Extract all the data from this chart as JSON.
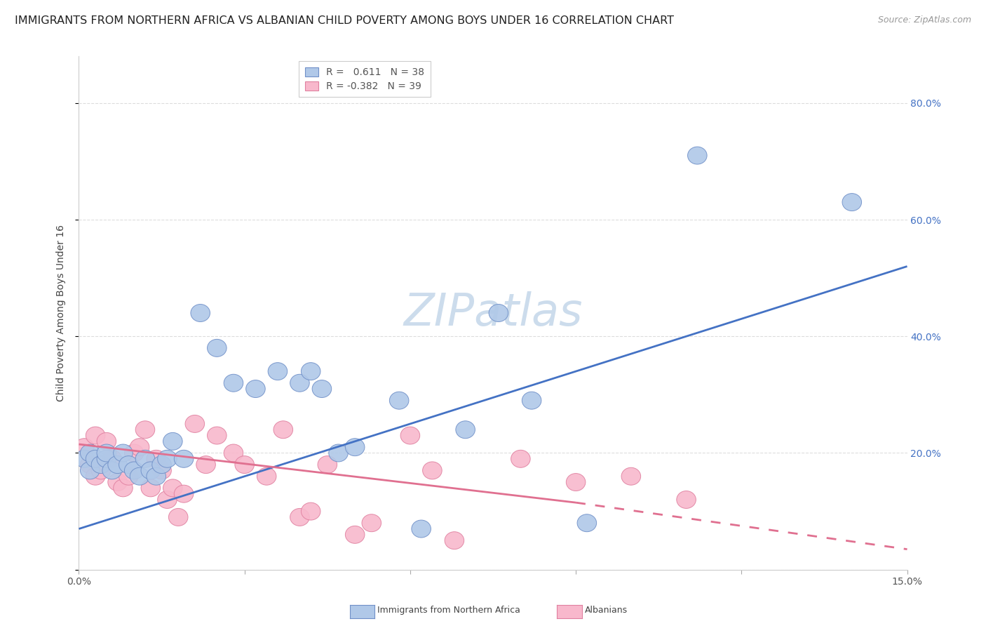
{
  "title": "IMMIGRANTS FROM NORTHERN AFRICA VS ALBANIAN CHILD POVERTY AMONG BOYS UNDER 16 CORRELATION CHART",
  "source": "Source: ZipAtlas.com",
  "ylabel": "Child Poverty Among Boys Under 16",
  "xlim": [
    0.0,
    0.15
  ],
  "ylim": [
    0.0,
    0.88
  ],
  "xticks": [
    0.0,
    0.03,
    0.06,
    0.09,
    0.12,
    0.15
  ],
  "xticklabels": [
    "0.0%",
    "",
    "",
    "",
    "",
    "15.0%"
  ],
  "yticks": [
    0.0,
    0.2,
    0.4,
    0.6,
    0.8
  ],
  "right_yticklabels": [
    "",
    "20.0%",
    "40.0%",
    "60.0%",
    "80.0%"
  ],
  "blue_R": "0.611",
  "blue_N": "38",
  "pink_R": "-0.382",
  "pink_N": "39",
  "blue_line_color": "#4472c4",
  "pink_line_color": "#e07090",
  "watermark": "ZIPatlas",
  "blue_scatter_x": [
    0.001,
    0.002,
    0.002,
    0.003,
    0.004,
    0.005,
    0.005,
    0.006,
    0.007,
    0.008,
    0.009,
    0.01,
    0.011,
    0.012,
    0.013,
    0.014,
    0.015,
    0.016,
    0.017,
    0.019,
    0.022,
    0.025,
    0.028,
    0.032,
    0.036,
    0.04,
    0.042,
    0.044,
    0.047,
    0.05,
    0.058,
    0.062,
    0.07,
    0.076,
    0.082,
    0.092,
    0.112,
    0.14
  ],
  "blue_scatter_y": [
    0.19,
    0.17,
    0.2,
    0.19,
    0.18,
    0.19,
    0.2,
    0.17,
    0.18,
    0.2,
    0.18,
    0.17,
    0.16,
    0.19,
    0.17,
    0.16,
    0.18,
    0.19,
    0.22,
    0.19,
    0.44,
    0.38,
    0.32,
    0.31,
    0.34,
    0.32,
    0.34,
    0.31,
    0.2,
    0.21,
    0.29,
    0.07,
    0.24,
    0.44,
    0.29,
    0.08,
    0.71,
    0.63
  ],
  "pink_scatter_x": [
    0.001,
    0.002,
    0.003,
    0.003,
    0.004,
    0.005,
    0.006,
    0.007,
    0.008,
    0.009,
    0.01,
    0.011,
    0.012,
    0.013,
    0.014,
    0.015,
    0.016,
    0.017,
    0.018,
    0.019,
    0.021,
    0.023,
    0.025,
    0.028,
    0.03,
    0.034,
    0.037,
    0.04,
    0.042,
    0.045,
    0.05,
    0.053,
    0.06,
    0.064,
    0.068,
    0.08,
    0.09,
    0.1,
    0.11
  ],
  "pink_scatter_y": [
    0.21,
    0.18,
    0.16,
    0.23,
    0.17,
    0.22,
    0.19,
    0.15,
    0.14,
    0.16,
    0.2,
    0.21,
    0.24,
    0.14,
    0.19,
    0.17,
    0.12,
    0.14,
    0.09,
    0.13,
    0.25,
    0.18,
    0.23,
    0.2,
    0.18,
    0.16,
    0.24,
    0.09,
    0.1,
    0.18,
    0.06,
    0.08,
    0.23,
    0.17,
    0.05,
    0.19,
    0.15,
    0.16,
    0.12
  ],
  "blue_line_x0": 0.0,
  "blue_line_x1": 0.15,
  "blue_line_y0": 0.07,
  "blue_line_y1": 0.52,
  "pink_line_x0": 0.0,
  "pink_line_x1": 0.09,
  "pink_line_x2": 0.15,
  "pink_line_y0": 0.215,
  "pink_line_y1": 0.115,
  "pink_line_y2": 0.035,
  "background_color": "#ffffff",
  "grid_color": "#dddddd",
  "title_fontsize": 11.5,
  "axis_label_fontsize": 10,
  "tick_fontsize": 10,
  "legend_fontsize": 10,
  "watermark_fontsize": 46,
  "watermark_color": "#ccdcec",
  "source_fontsize": 9
}
